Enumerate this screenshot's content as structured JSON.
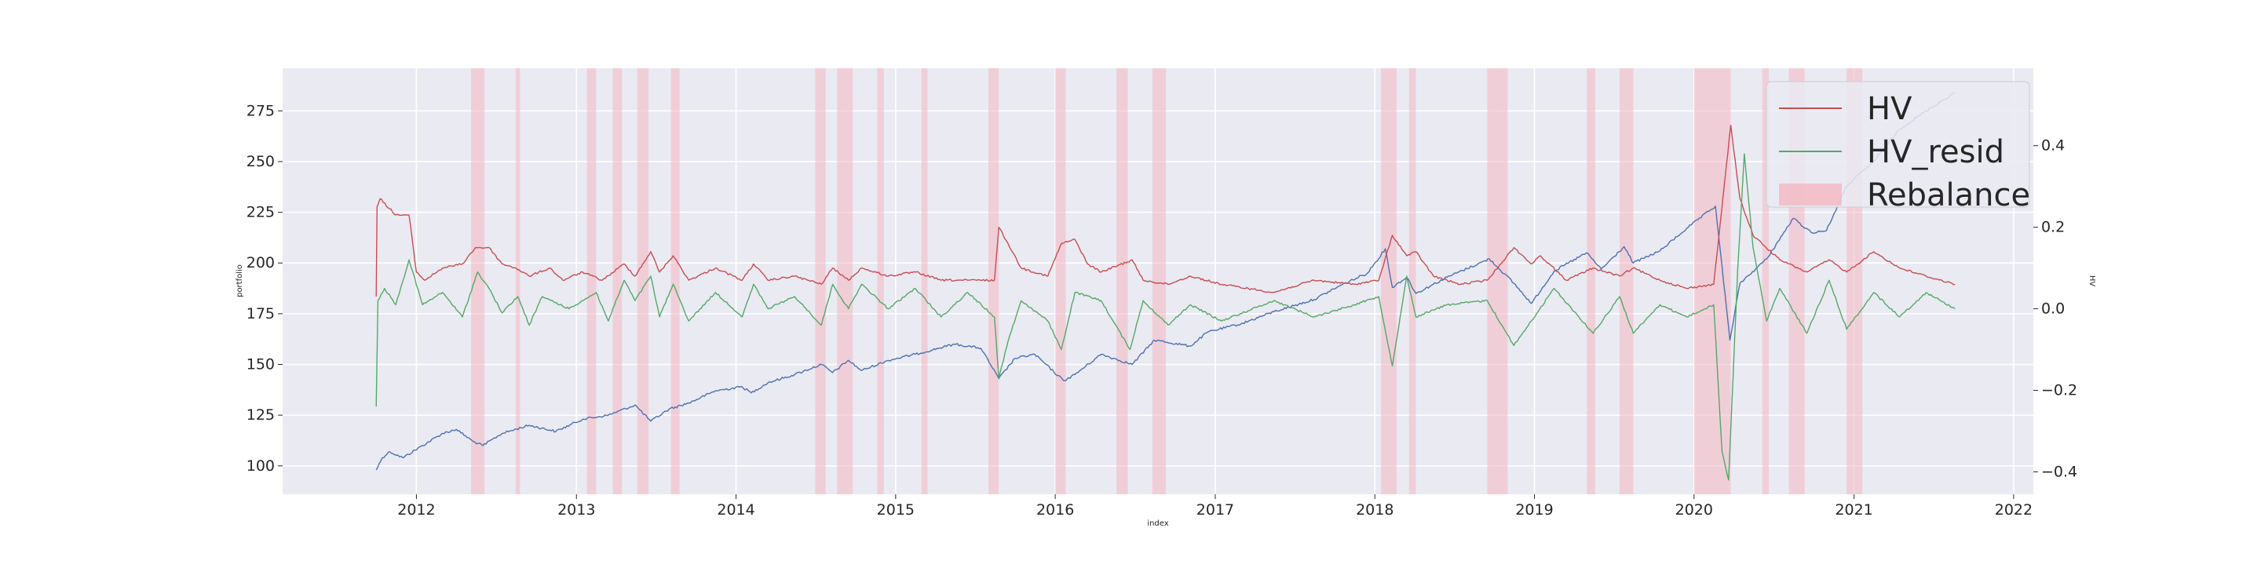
{
  "chart_data": {
    "type": "line",
    "xlabel": "index",
    "ylabel_left": "portfolio",
    "ylabel_right": "HV",
    "xlim": [
      "2011-03-01",
      "2022-02-15"
    ],
    "ylim_left": [
      86,
      296
    ],
    "ylim_right": [
      -0.455,
      0.59
    ],
    "x_ticks": [
      "2012",
      "2013",
      "2014",
      "2015",
      "2016",
      "2017",
      "2018",
      "2019",
      "2020",
      "2021",
      "2022"
    ],
    "y_ticks_left": [
      "100",
      "125",
      "150",
      "175",
      "200",
      "225",
      "250",
      "275"
    ],
    "y_ticks_right": [
      "−0.4",
      "−0.2",
      "0.0",
      "0.2",
      "0.4"
    ],
    "grid": true,
    "legend_position": "top-right",
    "legend": [
      {
        "label": "HV",
        "kind": "line",
        "color": "#c44e52"
      },
      {
        "label": "HV_resid",
        "kind": "line",
        "color": "#55a868"
      },
      {
        "label": "Rebalance",
        "kind": "patch",
        "color": "#f4b6c2"
      }
    ],
    "rebalance_periods": [
      [
        "2012-05-05",
        "2012-06-05"
      ],
      [
        "2012-08-15",
        "2012-08-25"
      ],
      [
        "2013-01-25",
        "2013-02-15"
      ],
      [
        "2013-03-25",
        "2013-04-15"
      ],
      [
        "2013-05-20",
        "2013-06-15"
      ],
      [
        "2013-08-05",
        "2013-08-25"
      ],
      [
        "2014-07-01",
        "2014-07-25"
      ],
      [
        "2014-08-20",
        "2014-09-25"
      ],
      [
        "2014-11-20",
        "2014-12-05"
      ],
      [
        "2015-03-01",
        "2015-03-15"
      ],
      [
        "2015-08-01",
        "2015-08-25"
      ],
      [
        "2016-01-01",
        "2016-01-25"
      ],
      [
        "2016-05-20",
        "2016-06-15"
      ],
      [
        "2016-08-10",
        "2016-09-10"
      ],
      [
        "2018-01-15",
        "2018-02-20"
      ],
      [
        "2018-03-20",
        "2018-04-05"
      ],
      [
        "2018-09-15",
        "2018-11-01"
      ],
      [
        "2019-05-01",
        "2019-05-20"
      ],
      [
        "2019-07-15",
        "2019-08-15"
      ],
      [
        "2020-01-01",
        "2020-03-25"
      ],
      [
        "2020-06-05",
        "2020-06-20"
      ],
      [
        "2020-08-05",
        "2020-09-10"
      ],
      [
        "2020-12-15",
        "2021-01-20"
      ]
    ],
    "series": [
      {
        "name": "portfolio",
        "axis": "left",
        "color": "#4c72b0",
        "points": [
          [
            "2011-10-01",
            98
          ],
          [
            "2011-10-15",
            104
          ],
          [
            "2011-11-01",
            107
          ],
          [
            "2011-12-01",
            104
          ],
          [
            "2012-01-15",
            110
          ],
          [
            "2012-03-01",
            116
          ],
          [
            "2012-04-01",
            118
          ],
          [
            "2012-05-10",
            112
          ],
          [
            "2012-06-01",
            110
          ],
          [
            "2012-07-15",
            116
          ],
          [
            "2012-09-15",
            120
          ],
          [
            "2012-11-15",
            117
          ],
          [
            "2013-01-15",
            123
          ],
          [
            "2013-03-15",
            125
          ],
          [
            "2013-05-15",
            130
          ],
          [
            "2013-06-20",
            122
          ],
          [
            "2013-08-01",
            128
          ],
          [
            "2013-09-15",
            131
          ],
          [
            "2013-11-15",
            137
          ],
          [
            "2014-01-15",
            139
          ],
          [
            "2014-02-05",
            136
          ],
          [
            "2014-03-15",
            141
          ],
          [
            "2014-05-15",
            145
          ],
          [
            "2014-07-15",
            150
          ],
          [
            "2014-08-10",
            146
          ],
          [
            "2014-09-15",
            152
          ],
          [
            "2014-10-15",
            147
          ],
          [
            "2014-12-15",
            152
          ],
          [
            "2015-02-15",
            155
          ],
          [
            "2015-05-15",
            160
          ],
          [
            "2015-07-15",
            158
          ],
          [
            "2015-08-25",
            143
          ],
          [
            "2015-10-01",
            153
          ],
          [
            "2015-11-15",
            155
          ],
          [
            "2016-01-20",
            142
          ],
          [
            "2016-02-15",
            145
          ],
          [
            "2016-04-15",
            155
          ],
          [
            "2016-06-25",
            150
          ],
          [
            "2016-08-15",
            162
          ],
          [
            "2016-11-05",
            159
          ],
          [
            "2016-12-15",
            166
          ],
          [
            "2017-03-01",
            170
          ],
          [
            "2017-05-15",
            176
          ],
          [
            "2017-08-15",
            182
          ],
          [
            "2017-10-15",
            189
          ],
          [
            "2017-12-15",
            195
          ],
          [
            "2018-01-25",
            207
          ],
          [
            "2018-02-10",
            188
          ],
          [
            "2018-03-15",
            193
          ],
          [
            "2018-04-05",
            185
          ],
          [
            "2018-06-15",
            193
          ],
          [
            "2018-09-20",
            202
          ],
          [
            "2018-11-15",
            190
          ],
          [
            "2018-12-25",
            180
          ],
          [
            "2019-02-15",
            196
          ],
          [
            "2019-04-30",
            205
          ],
          [
            "2019-06-03",
            197
          ],
          [
            "2019-07-25",
            208
          ],
          [
            "2019-08-15",
            200
          ],
          [
            "2019-10-15",
            206
          ],
          [
            "2019-12-15",
            217
          ],
          [
            "2020-02-19",
            228
          ],
          [
            "2020-03-23",
            162
          ],
          [
            "2020-04-15",
            190
          ],
          [
            "2020-06-15",
            202
          ],
          [
            "2020-08-15",
            222
          ],
          [
            "2020-09-25",
            215
          ],
          [
            "2020-10-30",
            216
          ],
          [
            "2020-12-15",
            238
          ],
          [
            "2021-02-15",
            250
          ],
          [
            "2021-04-15",
            266
          ],
          [
            "2021-06-15",
            275
          ],
          [
            "2021-08-20",
            284
          ]
        ]
      },
      {
        "name": "HV",
        "axis": "right",
        "color": "#c44e52",
        "points": [
          [
            "2011-10-01",
            0.03
          ],
          [
            "2011-10-03",
            0.25
          ],
          [
            "2011-10-10",
            0.27
          ],
          [
            "2011-11-15",
            0.23
          ],
          [
            "2011-12-15",
            0.23
          ],
          [
            "2012-01-01",
            0.09
          ],
          [
            "2012-01-20",
            0.07
          ],
          [
            "2012-03-01",
            0.1
          ],
          [
            "2012-04-15",
            0.11
          ],
          [
            "2012-05-15",
            0.15
          ],
          [
            "2012-06-15",
            0.15
          ],
          [
            "2012-07-15",
            0.11
          ],
          [
            "2012-08-15",
            0.1
          ],
          [
            "2012-09-15",
            0.08
          ],
          [
            "2012-11-01",
            0.1
          ],
          [
            "2012-12-01",
            0.07
          ],
          [
            "2013-01-15",
            0.09
          ],
          [
            "2013-03-01",
            0.07
          ],
          [
            "2013-04-20",
            0.11
          ],
          [
            "2013-05-15",
            0.08
          ],
          [
            "2013-06-20",
            0.14
          ],
          [
            "2013-07-10",
            0.09
          ],
          [
            "2013-08-10",
            0.13
          ],
          [
            "2013-09-15",
            0.07
          ],
          [
            "2013-11-15",
            0.1
          ],
          [
            "2014-01-15",
            0.07
          ],
          [
            "2014-02-10",
            0.11
          ],
          [
            "2014-03-15",
            0.07
          ],
          [
            "2014-05-15",
            0.08
          ],
          [
            "2014-07-15",
            0.06
          ],
          [
            "2014-08-10",
            0.1
          ],
          [
            "2014-09-15",
            0.07
          ],
          [
            "2014-10-15",
            0.1
          ],
          [
            "2014-12-15",
            0.08
          ],
          [
            "2015-02-15",
            0.09
          ],
          [
            "2015-04-15",
            0.07
          ],
          [
            "2015-06-15",
            0.07
          ],
          [
            "2015-08-15",
            0.07
          ],
          [
            "2015-08-25",
            0.2
          ],
          [
            "2015-09-15",
            0.16
          ],
          [
            "2015-10-15",
            0.1
          ],
          [
            "2015-12-15",
            0.08
          ],
          [
            "2016-01-15",
            0.16
          ],
          [
            "2016-02-15",
            0.17
          ],
          [
            "2016-03-15",
            0.11
          ],
          [
            "2016-04-15",
            0.09
          ],
          [
            "2016-06-25",
            0.12
          ],
          [
            "2016-07-20",
            0.07
          ],
          [
            "2016-09-15",
            0.06
          ],
          [
            "2016-11-05",
            0.08
          ],
          [
            "2017-01-15",
            0.06
          ],
          [
            "2017-05-15",
            0.04
          ],
          [
            "2017-08-15",
            0.07
          ],
          [
            "2017-11-15",
            0.06
          ],
          [
            "2018-01-10",
            0.07
          ],
          [
            "2018-02-10",
            0.18
          ],
          [
            "2018-03-15",
            0.13
          ],
          [
            "2018-04-05",
            0.14
          ],
          [
            "2018-05-15",
            0.08
          ],
          [
            "2018-07-15",
            0.06
          ],
          [
            "2018-09-15",
            0.07
          ],
          [
            "2018-11-15",
            0.15
          ],
          [
            "2018-12-25",
            0.11
          ],
          [
            "2019-01-15",
            0.13
          ],
          [
            "2019-03-15",
            0.07
          ],
          [
            "2019-05-15",
            0.1
          ],
          [
            "2019-07-15",
            0.08
          ],
          [
            "2019-08-15",
            0.1
          ],
          [
            "2019-10-15",
            0.07
          ],
          [
            "2019-12-15",
            0.05
          ],
          [
            "2020-02-15",
            0.06
          ],
          [
            "2020-03-05",
            0.25
          ],
          [
            "2020-03-25",
            0.45
          ],
          [
            "2020-04-15",
            0.27
          ],
          [
            "2020-05-15",
            0.18
          ],
          [
            "2020-07-15",
            0.12
          ],
          [
            "2020-09-15",
            0.09
          ],
          [
            "2020-11-05",
            0.12
          ],
          [
            "2020-12-15",
            0.09
          ],
          [
            "2021-02-15",
            0.14
          ],
          [
            "2021-04-15",
            0.1
          ],
          [
            "2021-06-15",
            0.08
          ],
          [
            "2021-08-20",
            0.06
          ]
        ]
      },
      {
        "name": "HV_resid",
        "axis": "right",
        "color": "#55a868",
        "points": [
          [
            "2011-10-01",
            -0.24
          ],
          [
            "2011-10-05",
            0.02
          ],
          [
            "2011-10-20",
            0.05
          ],
          [
            "2011-11-15",
            0.01
          ],
          [
            "2011-12-15",
            0.12
          ],
          [
            "2012-01-15",
            0.01
          ],
          [
            "2012-03-01",
            0.04
          ],
          [
            "2012-04-15",
            -0.02
          ],
          [
            "2012-05-20",
            0.09
          ],
          [
            "2012-06-15",
            0.05
          ],
          [
            "2012-07-15",
            -0.01
          ],
          [
            "2012-08-20",
            0.03
          ],
          [
            "2012-09-15",
            -0.04
          ],
          [
            "2012-10-15",
            0.03
          ],
          [
            "2012-12-15",
            0.0
          ],
          [
            "2013-02-15",
            0.04
          ],
          [
            "2013-03-15",
            -0.03
          ],
          [
            "2013-04-20",
            0.07
          ],
          [
            "2013-05-15",
            0.02
          ],
          [
            "2013-06-20",
            0.08
          ],
          [
            "2013-07-10",
            -0.02
          ],
          [
            "2013-08-10",
            0.06
          ],
          [
            "2013-09-15",
            -0.03
          ],
          [
            "2013-11-15",
            0.04
          ],
          [
            "2014-01-15",
            -0.02
          ],
          [
            "2014-02-10",
            0.06
          ],
          [
            "2014-03-15",
            0.0
          ],
          [
            "2014-05-15",
            0.03
          ],
          [
            "2014-07-15",
            -0.04
          ],
          [
            "2014-08-10",
            0.06
          ],
          [
            "2014-09-15",
            0.0
          ],
          [
            "2014-10-15",
            0.06
          ],
          [
            "2014-12-15",
            0.0
          ],
          [
            "2015-02-15",
            0.05
          ],
          [
            "2015-04-15",
            -0.02
          ],
          [
            "2015-06-15",
            0.04
          ],
          [
            "2015-08-15",
            -0.02
          ],
          [
            "2015-08-25",
            -0.17
          ],
          [
            "2015-09-15",
            -0.08
          ],
          [
            "2015-10-15",
            0.02
          ],
          [
            "2015-12-15",
            -0.03
          ],
          [
            "2016-01-15",
            -0.1
          ],
          [
            "2016-02-15",
            0.04
          ],
          [
            "2016-04-15",
            0.02
          ],
          [
            "2016-06-20",
            -0.1
          ],
          [
            "2016-07-20",
            0.02
          ],
          [
            "2016-09-15",
            -0.04
          ],
          [
            "2016-11-05",
            0.01
          ],
          [
            "2017-01-15",
            -0.03
          ],
          [
            "2017-05-15",
            0.02
          ],
          [
            "2017-08-15",
            -0.02
          ],
          [
            "2017-11-15",
            0.01
          ],
          [
            "2018-01-10",
            0.03
          ],
          [
            "2018-02-10",
            -0.14
          ],
          [
            "2018-03-15",
            0.08
          ],
          [
            "2018-04-05",
            -0.02
          ],
          [
            "2018-06-15",
            0.01
          ],
          [
            "2018-09-15",
            0.02
          ],
          [
            "2018-11-15",
            -0.09
          ],
          [
            "2018-12-25",
            -0.03
          ],
          [
            "2019-02-15",
            0.05
          ],
          [
            "2019-05-15",
            -0.06
          ],
          [
            "2019-07-15",
            0.03
          ],
          [
            "2019-08-15",
            -0.06
          ],
          [
            "2019-10-15",
            0.01
          ],
          [
            "2019-12-15",
            -0.02
          ],
          [
            "2020-02-15",
            0.01
          ],
          [
            "2020-03-05",
            -0.35
          ],
          [
            "2020-03-20",
            -0.42
          ],
          [
            "2020-04-10",
            0.1
          ],
          [
            "2020-04-25",
            0.38
          ],
          [
            "2020-05-15",
            0.15
          ],
          [
            "2020-06-15",
            -0.03
          ],
          [
            "2020-07-15",
            0.05
          ],
          [
            "2020-09-15",
            -0.06
          ],
          [
            "2020-11-05",
            0.07
          ],
          [
            "2020-12-15",
            -0.05
          ],
          [
            "2021-02-15",
            0.04
          ],
          [
            "2021-04-15",
            -0.02
          ],
          [
            "2021-06-15",
            0.04
          ],
          [
            "2021-08-20",
            0.0
          ]
        ]
      }
    ]
  }
}
